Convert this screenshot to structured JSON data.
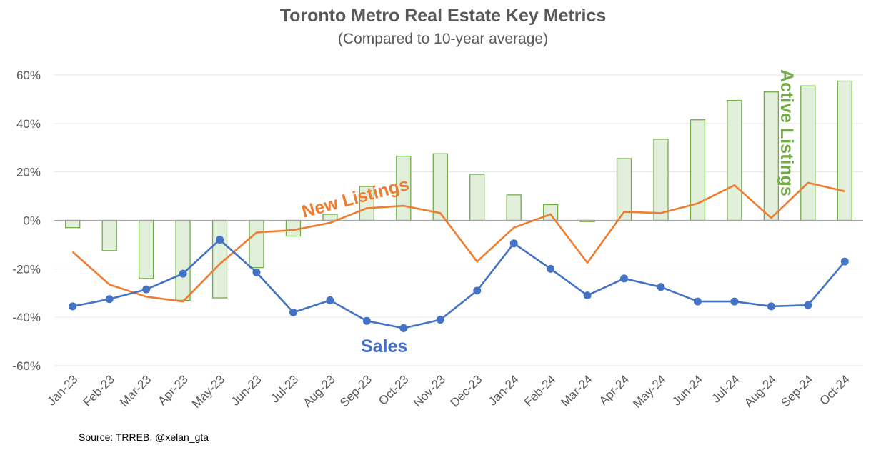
{
  "chart_data": {
    "type": "bar+line",
    "title": "Toronto Metro Real Estate Key Metrics",
    "subtitle": "(Compared to 10-year average)",
    "source": "Source: TRREB, @xelan_gta",
    "categories": [
      "Jan-23",
      "Feb-23",
      "Mar-23",
      "Apr-23",
      "May-23",
      "Jun-23",
      "Jul-23",
      "Aug-23",
      "Sep-23",
      "Oct-23",
      "Nov-23",
      "Dec-23",
      "Jan-24",
      "Feb-24",
      "Mar-24",
      "Apr-24",
      "May-24",
      "Jun-24",
      "Jul-24",
      "Aug-24",
      "Sep-24",
      "Oct-24"
    ],
    "y_ticks": [
      60,
      40,
      20,
      0,
      -20,
      -40,
      -60
    ],
    "y_tick_labels": [
      "60%",
      "40%",
      "20%",
      "0%",
      "-20%",
      "-40%",
      "-60%"
    ],
    "ylim": [
      -60,
      60
    ],
    "series": [
      {
        "name": "Active Listings",
        "label": "Active Listings",
        "type": "bar",
        "color": "#70AD47",
        "fill": "#E2EFDA",
        "values": [
          -3,
          -12.5,
          -24,
          -33,
          -32,
          -19.5,
          -6.5,
          2.5,
          14,
          26.5,
          27.5,
          19,
          10.5,
          6.5,
          -0.5,
          25.5,
          33.5,
          41.5,
          49.5,
          53,
          55.5,
          57.5
        ]
      },
      {
        "name": "New Listings",
        "label": "New Listings",
        "type": "line",
        "color": "#ED7D31",
        "values": [
          -13,
          -26.5,
          -31.5,
          -33.5,
          -18,
          -5,
          -4,
          -1,
          5,
          6,
          3,
          -17,
          -3,
          2.5,
          -17.5,
          3.5,
          3,
          7,
          14.5,
          1,
          15.5,
          12
        ]
      },
      {
        "name": "Sales",
        "label": "Sales",
        "type": "line",
        "color": "#4472C4",
        "values": [
          -35.5,
          -32.5,
          -28.5,
          -22,
          -8,
          -21.5,
          -38,
          -33,
          -41.5,
          -44.5,
          -41,
          -29,
          -9.5,
          -20,
          -31,
          -24,
          -27.5,
          -33.5,
          -33.5,
          -35.5,
          -35,
          -17
        ]
      }
    ]
  }
}
